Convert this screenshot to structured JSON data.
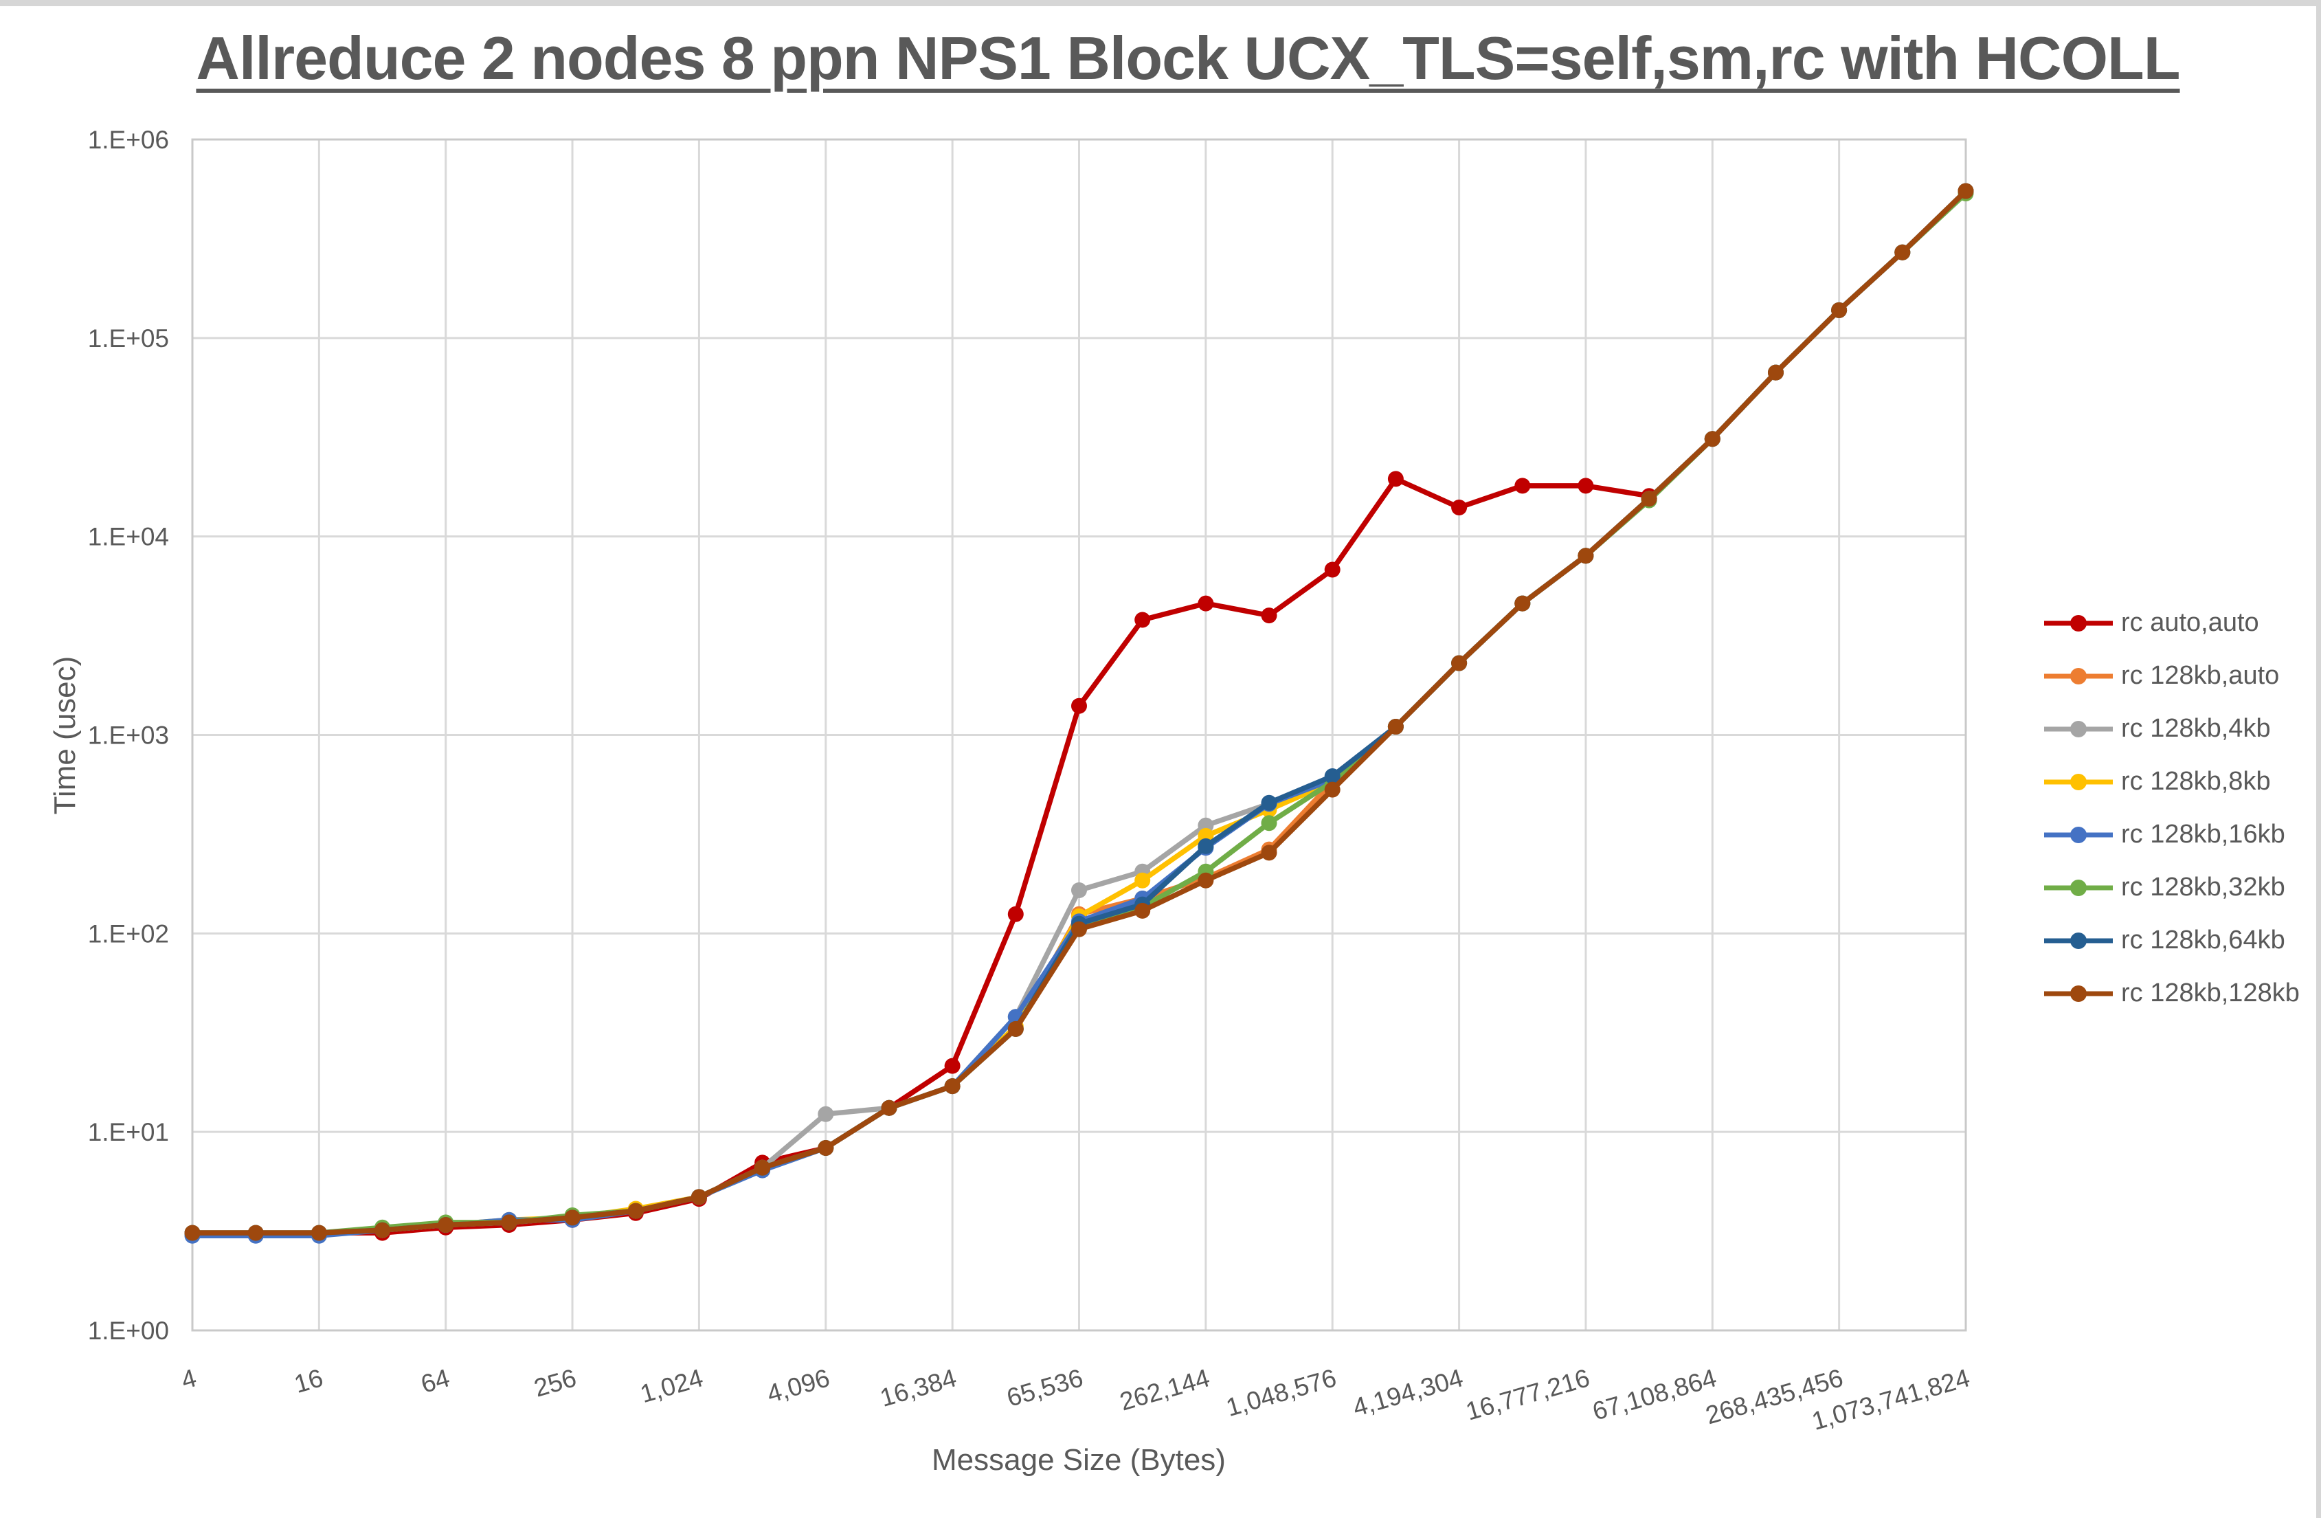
{
  "window": {
    "edge_color": "#d6d6d6",
    "background": "#ffffff"
  },
  "chart_data": {
    "type": "line",
    "title": "Allreduce 2 nodes 8 ppn NPS1 Block UCX_TLS=self,sm,rc with HCOLL",
    "xlabel": "Message Size (Bytes)",
    "ylabel": "Time (usec)",
    "x_scale": "log2",
    "y_scale": "log10",
    "ylim": [
      1,
      1000000
    ],
    "grid": true,
    "grid_color": "#d9d9d9",
    "border_color": "#c9c9c9",
    "text_color": "#595959",
    "title_color": "#595959",
    "legend_position": "right",
    "y_ticks": [
      {
        "exp": 0,
        "label": "1.E+00"
      },
      {
        "exp": 1,
        "label": "1.E+01"
      },
      {
        "exp": 2,
        "label": "1.E+02"
      },
      {
        "exp": 3,
        "label": "1.E+03"
      },
      {
        "exp": 4,
        "label": "1.E+04"
      },
      {
        "exp": 5,
        "label": "1.E+05"
      },
      {
        "exp": 6,
        "label": "1.E+06"
      }
    ],
    "x_tick_values": [
      4,
      16,
      64,
      256,
      1024,
      4096,
      16384,
      65536,
      262144,
      1048576,
      4194304,
      16777216,
      67108864,
      268435456,
      1073741824
    ],
    "x_tick_labels": [
      "4",
      "16",
      "64",
      "256",
      "1,024",
      "4,096",
      "16,384",
      "65,536",
      "262,144",
      "1,048,576",
      "4,194,304",
      "16,777,216",
      "67,108,864",
      "268,435,456",
      "1,073,741,824"
    ],
    "x": [
      4,
      8,
      16,
      32,
      64,
      128,
      256,
      512,
      1024,
      2048,
      4096,
      8192,
      16384,
      32768,
      65536,
      131072,
      262144,
      524288,
      1048576,
      2097152,
      4194304,
      8388608,
      16777216,
      33554432,
      67108864,
      134217728,
      268435456,
      536870912,
      1073741824
    ],
    "series": [
      {
        "name": "rc auto,auto",
        "color": "#C00000",
        "values": [
          3.1,
          3.1,
          3.1,
          3.1,
          3.3,
          3.4,
          3.6,
          3.9,
          4.6,
          7.0,
          8.3,
          13.2,
          21.5,
          125,
          1400,
          3800,
          4600,
          4000,
          6800,
          19500,
          14000,
          18000,
          18000,
          16000
        ]
      },
      {
        "name": "rc 128kb,auto",
        "color": "#ED7D31",
        "values": [
          3.1,
          3.1,
          3.1,
          3.2,
          3.4,
          3.5,
          3.7,
          4.0,
          4.7,
          6.6,
          8.3,
          13.2,
          17,
          33,
          125,
          150,
          190,
          265,
          580,
          1100,
          2300,
          4600,
          8000,
          15500,
          31000,
          67000,
          138000,
          270000,
          550000
        ]
      },
      {
        "name": "rc 128kb,4kb",
        "color": "#A5A5A5",
        "values": [
          3.1,
          3.1,
          3.1,
          3.2,
          3.4,
          3.5,
          3.7,
          4.0,
          4.7,
          6.6,
          12.3,
          13.2,
          17,
          38,
          165,
          205,
          350,
          450,
          580,
          1100,
          2300,
          4600,
          8000,
          15500,
          31000,
          67000,
          138000,
          270000,
          550000
        ]
      },
      {
        "name": "rc 128kb,8kb",
        "color": "#FFC000",
        "values": [
          3.1,
          3.1,
          3.1,
          3.2,
          3.4,
          3.6,
          3.7,
          4.1,
          4.7,
          6.6,
          8.3,
          13.2,
          17,
          34,
          122,
          185,
          310,
          420,
          580,
          1100,
          2300,
          4600,
          8000,
          15500,
          31000,
          67000,
          138000,
          270000,
          550000
        ]
      },
      {
        "name": "rc 128kb,16kb",
        "color": "#4472C4",
        "values": [
          3.0,
          3.0,
          3.0,
          3.2,
          3.4,
          3.6,
          3.6,
          4.0,
          4.7,
          6.4,
          8.3,
          13.2,
          17,
          38,
          115,
          150,
          270,
          450,
          595,
          1100,
          2300,
          4600,
          8000,
          15500,
          31000,
          67000,
          138000,
          270000,
          550000
        ]
      },
      {
        "name": "rc 128kb,32kb",
        "color": "#70AD47",
        "values": [
          3.1,
          3.1,
          3.1,
          3.3,
          3.5,
          3.5,
          3.8,
          4.0,
          4.7,
          6.6,
          8.3,
          13.2,
          17,
          33,
          108,
          136,
          205,
          360,
          580,
          1100,
          2300,
          4600,
          8000,
          15200,
          31000,
          67000,
          138000,
          270000,
          535000
        ]
      },
      {
        "name": "rc 128kb,64kb",
        "color": "#255E91",
        "values": [
          3.1,
          3.1,
          3.1,
          3.2,
          3.4,
          3.5,
          3.7,
          4.0,
          4.7,
          6.6,
          8.3,
          13.2,
          17,
          33,
          112,
          140,
          275,
          455,
          620,
          1100,
          2300,
          4600,
          8000,
          15500,
          31000,
          67000,
          138000,
          270000,
          550000
        ]
      },
      {
        "name": "rc 128kb,128kb",
        "color": "#9E480E",
        "values": [
          3.1,
          3.1,
          3.1,
          3.2,
          3.4,
          3.5,
          3.7,
          4.0,
          4.7,
          6.6,
          8.3,
          13.2,
          17,
          33,
          105,
          130,
          185,
          255,
          530,
          1100,
          2300,
          4600,
          8000,
          15500,
          31000,
          67000,
          138000,
          270000,
          550000
        ]
      }
    ]
  }
}
